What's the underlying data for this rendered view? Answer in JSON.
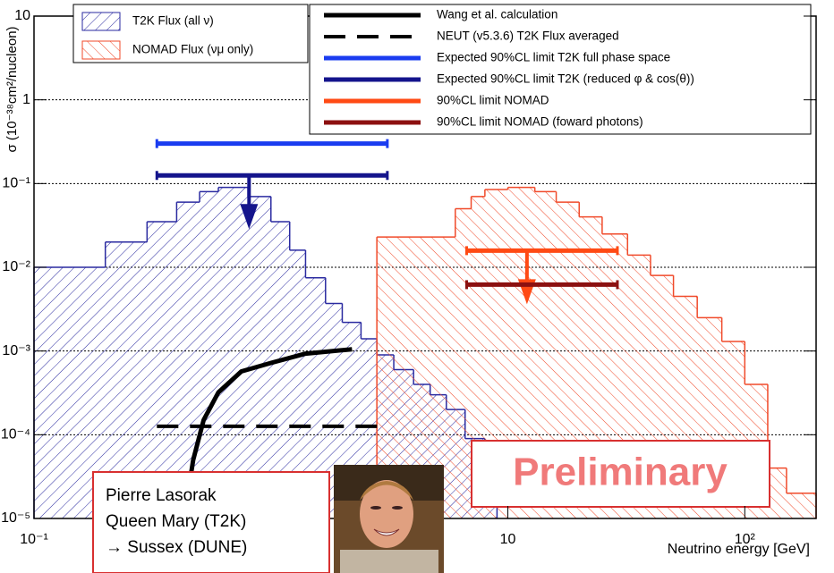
{
  "chart_data": {
    "type": "histogram",
    "xlabel": "Neutrino energy [GeV]",
    "ylabel": "σ (10⁻³⁸cm²/nucleon)",
    "log_x": true,
    "log_y": true,
    "grid": true,
    "xlim": [
      0.1,
      200
    ],
    "xticks": [
      {
        "value": 0.1,
        "label": "10⁻¹"
      },
      10,
      {
        "value": 100,
        "label": "10²"
      }
    ],
    "ylim": [
      1e-05,
      10
    ],
    "yticks": [
      {
        "value": 1e-05,
        "label": "10⁻⁵"
      },
      {
        "value": 0.0001,
        "label": "10⁻⁴"
      },
      {
        "value": 0.001,
        "label": "10⁻³"
      },
      {
        "value": 0.01,
        "label": "10⁻²"
      },
      {
        "value": 0.1,
        "label": "10⁻¹"
      },
      1,
      10
    ],
    "series": [
      {
        "name": "T2K Flux (all ν)",
        "type": "histogram",
        "color": "#2a2aa0",
        "hatch": "up",
        "bins": [
          0.1,
          0.2,
          0.3,
          0.4,
          0.5,
          0.6,
          0.8,
          1,
          1.2,
          1.4,
          1.7,
          2,
          2.4,
          2.8,
          3.3,
          4,
          4.7,
          5.5,
          6.6,
          8,
          9
        ],
        "values": [
          0.01,
          0.02,
          0.035,
          0.06,
          0.08,
          0.09,
          0.07,
          0.035,
          0.016,
          0.0075,
          0.0037,
          0.0022,
          0.0014,
          0.0009,
          0.0006,
          0.0004,
          0.0003,
          0.0002,
          9e-05,
          3e-05
        ]
      },
      {
        "name": "NOMAD Flux (νμ only)",
        "type": "histogram",
        "color": "#f04a2a",
        "hatch": "down",
        "bins": [
          2.8,
          6,
          7,
          8,
          10,
          13,
          16,
          20,
          25,
          32,
          40,
          50,
          63,
          80,
          100,
          125,
          150,
          200
        ],
        "values": [
          0.023,
          0.05,
          0.07,
          0.085,
          0.09,
          0.08,
          0.06,
          0.04,
          0.025,
          0.014,
          0.008,
          0.0045,
          0.0025,
          0.0013,
          0.0004,
          4e-05,
          2e-05
        ]
      },
      {
        "name": "Wang et al. calculation",
        "type": "line",
        "color": "#000000",
        "x": [
          0.43,
          0.47,
          0.52,
          0.6,
          0.75,
          1,
          1.4,
          2.2
        ],
        "values": [
          1e-05,
          5e-05,
          0.00015,
          0.00032,
          0.00057,
          0.00072,
          0.00093,
          0.00105
        ]
      },
      {
        "name": "NEUT (v5.3.6) T2K Flux averaged",
        "type": "line",
        "color": "#000000",
        "dashed": true,
        "x": [
          0.33,
          3.1
        ],
        "values": [
          0.000126,
          0.000126
        ]
      },
      {
        "name": "Expected 90%CL limit T2K full phase space",
        "type": "line",
        "color": "#1a3cf0",
        "x": [
          0.33,
          3.1
        ],
        "values": [
          0.3,
          0.3
        ]
      },
      {
        "name": "Expected 90%CL limit T2K (reduced φ & cos(θ))",
        "type": "line",
        "color": "#14148c",
        "arrow": true,
        "x": [
          0.33,
          3.1
        ],
        "values": [
          0.125,
          0.125
        ]
      },
      {
        "name": "90%CL limit NOMAD",
        "type": "line",
        "color": "#ff4a14",
        "arrow": true,
        "x": [
          6.7,
          29
        ],
        "values": [
          0.0158,
          0.0158
        ]
      },
      {
        "name": "90%CL limit NOMAD (foward photons)",
        "type": "line",
        "color": "#8c1010",
        "x": [
          6.7,
          29
        ],
        "values": [
          0.0062,
          0.0062
        ]
      }
    ],
    "watermark": "Preliminary",
    "author_box": [
      "Pierre Lasorak",
      "Queen Mary (T2K)",
      "→ Sussex (DUNE)"
    ]
  }
}
